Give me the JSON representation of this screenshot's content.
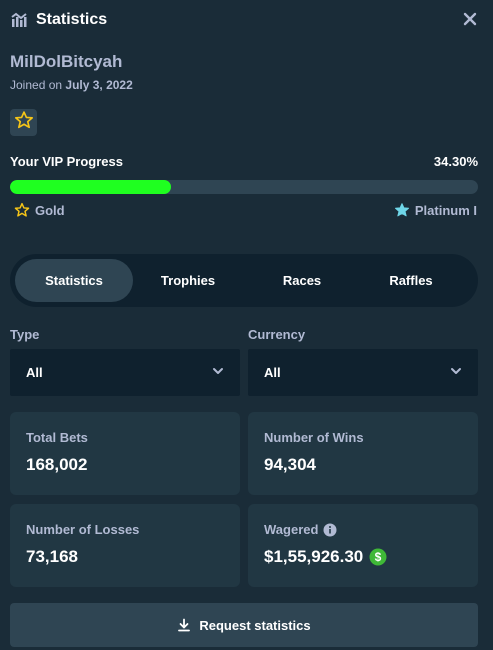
{
  "header": {
    "title": "Statistics"
  },
  "profile": {
    "username": "MilDolBitcyah",
    "joined_prefix": "Joined on",
    "joined_date": "July 3, 2022"
  },
  "vip": {
    "label": "Your VIP Progress",
    "percent_text": "34.30%",
    "percent_value": 34.3,
    "current_rank": "Gold",
    "next_rank": "Platinum I"
  },
  "tabs": [
    {
      "label": "Statistics",
      "active": true
    },
    {
      "label": "Trophies",
      "active": false
    },
    {
      "label": "Races",
      "active": false
    },
    {
      "label": "Raffles",
      "active": false
    }
  ],
  "filters": {
    "type": {
      "label": "Type",
      "value": "All"
    },
    "currency": {
      "label": "Currency",
      "value": "All"
    }
  },
  "stats": {
    "total_bets": {
      "label": "Total Bets",
      "value": "168,002"
    },
    "wins": {
      "label": "Number of Wins",
      "value": "94,304"
    },
    "losses": {
      "label": "Number of Losses",
      "value": "73,168"
    },
    "wagered": {
      "label": "Wagered",
      "value": "$1,55,926.30"
    }
  },
  "actions": {
    "request_label": "Request statistics"
  },
  "colors": {
    "background": "#1a2c38",
    "card": "#213743",
    "dark": "#0f212e",
    "accent_green": "#1fff20",
    "gold_star": "#f5c518",
    "platinum_star": "#6fd6e8"
  },
  "icons": {
    "header": "stats-chart-icon",
    "close": "close-icon",
    "badge": "star-icon",
    "wagered_info": "info-icon",
    "wagered_coin": "dollar-coin-icon",
    "request": "download-icon"
  }
}
